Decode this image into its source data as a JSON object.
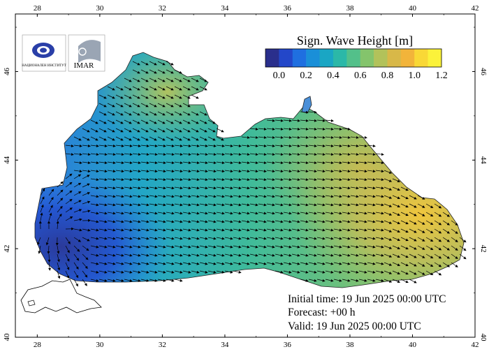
{
  "map": {
    "title": "Sign. Wave Height [m]",
    "colorbar": {
      "tick_labels": [
        "0.0",
        "0.2",
        "0.4",
        "0.6",
        "0.8",
        "1.0",
        "1.2"
      ],
      "colors": [
        "#2a2f8c",
        "#2347c9",
        "#1f6fe0",
        "#1a8fd8",
        "#1aa6c4",
        "#2bb8a8",
        "#53c08a",
        "#84c46c",
        "#b2c25a",
        "#d8b848",
        "#f2b43a",
        "#f9d836",
        "#fbf23a"
      ]
    },
    "lon_labels": [
      "28",
      "30",
      "32",
      "34",
      "36",
      "38",
      "40",
      "42"
    ],
    "lat_labels": [
      "40",
      "42",
      "44",
      "46"
    ],
    "info": {
      "initial_time": "Initial time: 19 Jun 2025 00:00 UTC",
      "forecast": "Forecast: +00 h",
      "valid": "Valid: 19 Jun 2025 00:00 UTC"
    },
    "logos": [
      {
        "name": "hydrometeorological-institute-logo",
        "text": "НАЦИОНАЛЕН ИНСТИТУТ"
      },
      {
        "name": "imar-logo",
        "text": "IMAR"
      }
    ],
    "lon_range": [
      27.3,
      42.0
    ],
    "lat_range": [
      40.0,
      47.3
    ]
  }
}
